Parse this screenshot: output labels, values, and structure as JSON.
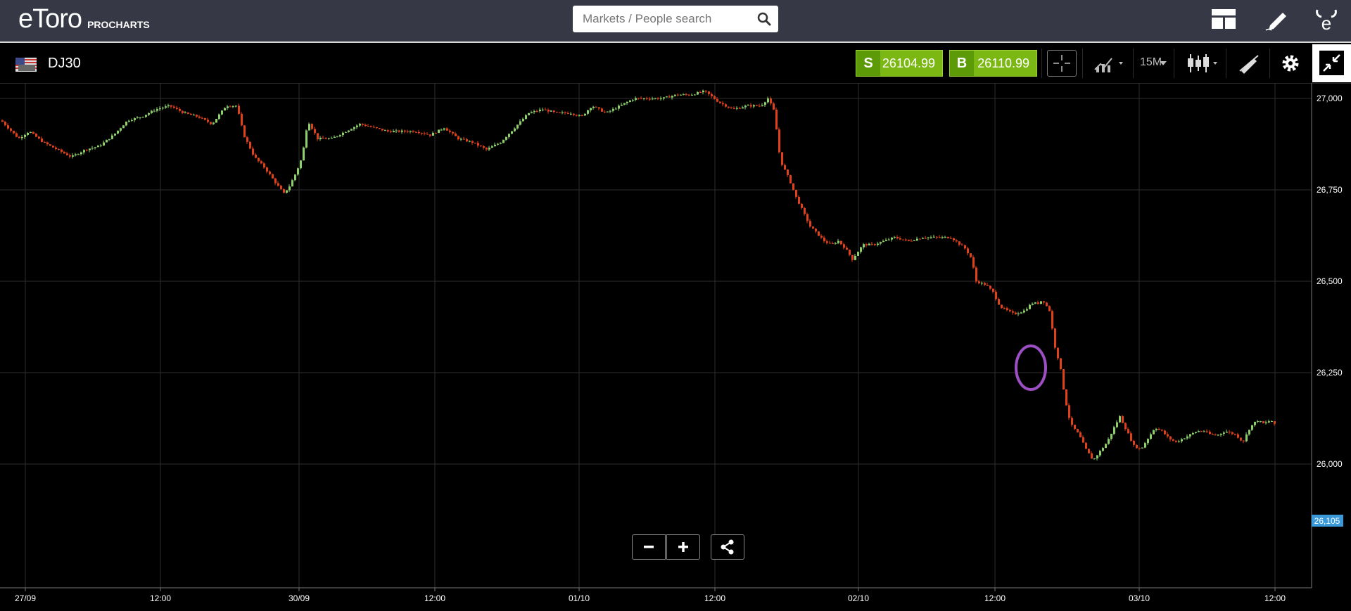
{
  "app": {
    "logo_text": "eToro",
    "logo_sub": "PROCHARTS"
  },
  "search": {
    "placeholder": "Markets / People search"
  },
  "toolbar": {
    "symbol": "DJ30",
    "sell_letter": "S",
    "sell_price": "26104.99",
    "buy_letter": "B",
    "buy_price": "26110.99",
    "timeframe": "15M"
  },
  "colors": {
    "up": "#8ccf6b",
    "down": "#e0401c",
    "trade": "#7bb814",
    "price_tag": "#3a9ad9",
    "annotation": "#9b4fc2"
  },
  "chart_data": {
    "type": "candlestick",
    "title": "",
    "ylabel": "",
    "xlabel": "",
    "ylim": [
      25985,
      27025
    ],
    "y_ticks": [
      "27,000",
      "26,750",
      "26,500",
      "26,250",
      "26,000"
    ],
    "x_ticks": [
      "27/09",
      "12:00",
      "30/09",
      "12:00",
      "01/10",
      "12:00",
      "02/10",
      "12:00",
      "03/10",
      "12:00"
    ],
    "current_price_label": "26,105",
    "path": [
      [
        0,
        26940
      ],
      [
        10,
        26920
      ],
      [
        25,
        26890
      ],
      [
        40,
        26910
      ],
      [
        60,
        26880
      ],
      [
        80,
        26860
      ],
      [
        100,
        26840
      ],
      [
        120,
        26860
      ],
      [
        140,
        26870
      ],
      [
        160,
        26900
      ],
      [
        180,
        26940
      ],
      [
        200,
        26950
      ],
      [
        220,
        26970
      ],
      [
        240,
        26980
      ],
      [
        260,
        26960
      ],
      [
        280,
        26950
      ],
      [
        300,
        26930
      ],
      [
        320,
        26980
      ],
      [
        335,
        26980
      ],
      [
        345,
        26900
      ],
      [
        360,
        26840
      ],
      [
        375,
        26810
      ],
      [
        390,
        26770
      ],
      [
        402,
        26740
      ],
      [
        410,
        26760
      ],
      [
        420,
        26800
      ],
      [
        428,
        26840
      ],
      [
        436,
        26940
      ],
      [
        450,
        26890
      ],
      [
        470,
        26890
      ],
      [
        490,
        26910
      ],
      [
        510,
        26930
      ],
      [
        530,
        26920
      ],
      [
        550,
        26910
      ],
      [
        570,
        26910
      ],
      [
        590,
        26910
      ],
      [
        610,
        26900
      ],
      [
        630,
        26920
      ],
      [
        650,
        26890
      ],
      [
        670,
        26880
      ],
      [
        690,
        26860
      ],
      [
        710,
        26880
      ],
      [
        730,
        26920
      ],
      [
        750,
        26960
      ],
      [
        770,
        26970
      ],
      [
        790,
        26960
      ],
      [
        810,
        26960
      ],
      [
        825,
        26950
      ],
      [
        840,
        26980
      ],
      [
        860,
        26960
      ],
      [
        880,
        26980
      ],
      [
        900,
        27000
      ],
      [
        920,
        27000
      ],
      [
        940,
        27000
      ],
      [
        960,
        27010
      ],
      [
        980,
        27010
      ],
      [
        1000,
        27020
      ],
      [
        1020,
        26990
      ],
      [
        1040,
        26970
      ],
      [
        1060,
        26980
      ],
      [
        1080,
        26980
      ],
      [
        1090,
        27000
      ],
      [
        1100,
        26960
      ],
      [
        1104,
        26870
      ],
      [
        1110,
        26820
      ],
      [
        1120,
        26780
      ],
      [
        1130,
        26730
      ],
      [
        1140,
        26690
      ],
      [
        1150,
        26650
      ],
      [
        1160,
        26630
      ],
      [
        1170,
        26610
      ],
      [
        1180,
        26600
      ],
      [
        1190,
        26610
      ],
      [
        1200,
        26590
      ],
      [
        1210,
        26560
      ],
      [
        1225,
        26600
      ],
      [
        1240,
        26600
      ],
      [
        1255,
        26610
      ],
      [
        1270,
        26620
      ],
      [
        1290,
        26610
      ],
      [
        1310,
        26620
      ],
      [
        1330,
        26620
      ],
      [
        1350,
        26620
      ],
      [
        1370,
        26590
      ],
      [
        1380,
        26560
      ],
      [
        1385,
        26500
      ],
      [
        1400,
        26490
      ],
      [
        1410,
        26470
      ],
      [
        1420,
        26430
      ],
      [
        1440,
        26410
      ],
      [
        1455,
        26420
      ],
      [
        1465,
        26440
      ],
      [
        1475,
        26440
      ],
      [
        1480,
        26450
      ],
      [
        1490,
        26420
      ],
      [
        1498,
        26320
      ],
      [
        1505,
        26270
      ],
      [
        1512,
        26180
      ],
      [
        1520,
        26110
      ],
      [
        1532,
        26080
      ],
      [
        1542,
        26040
      ],
      [
        1552,
        26010
      ],
      [
        1560,
        26030
      ],
      [
        1572,
        26060
      ],
      [
        1582,
        26100
      ],
      [
        1590,
        26130
      ],
      [
        1600,
        26090
      ],
      [
        1610,
        26050
      ],
      [
        1620,
        26040
      ],
      [
        1630,
        26070
      ],
      [
        1640,
        26100
      ],
      [
        1650,
        26090
      ],
      [
        1660,
        26070
      ],
      [
        1670,
        26060
      ],
      [
        1680,
        26070
      ],
      [
        1690,
        26080
      ],
      [
        1700,
        26090
      ],
      [
        1710,
        26090
      ],
      [
        1720,
        26080
      ],
      [
        1730,
        26080
      ],
      [
        1740,
        26090
      ],
      [
        1755,
        26080
      ],
      [
        1765,
        26060
      ],
      [
        1775,
        26100
      ],
      [
        1785,
        26120
      ],
      [
        1795,
        26110
      ],
      [
        1805,
        26120
      ],
      [
        1811,
        26105
      ]
    ]
  }
}
